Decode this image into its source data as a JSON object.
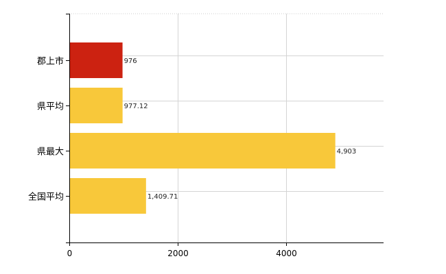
{
  "chart_data": {
    "type": "bar",
    "orientation": "horizontal",
    "categories": [
      "郡上市",
      "県平均",
      "県最大",
      "全国平均"
    ],
    "values": [
      976,
      977.12,
      4903,
      1409.71
    ],
    "value_labels": [
      "976",
      "977.12",
      "4,903",
      "1,409.71"
    ],
    "colors": [
      "#cc2211",
      "#f8c83a",
      "#f8c83a",
      "#f8c83a"
    ],
    "xlim": [
      0,
      5800
    ],
    "xticks": [
      0,
      2000,
      4000
    ],
    "grid": true,
    "legend": "none"
  }
}
